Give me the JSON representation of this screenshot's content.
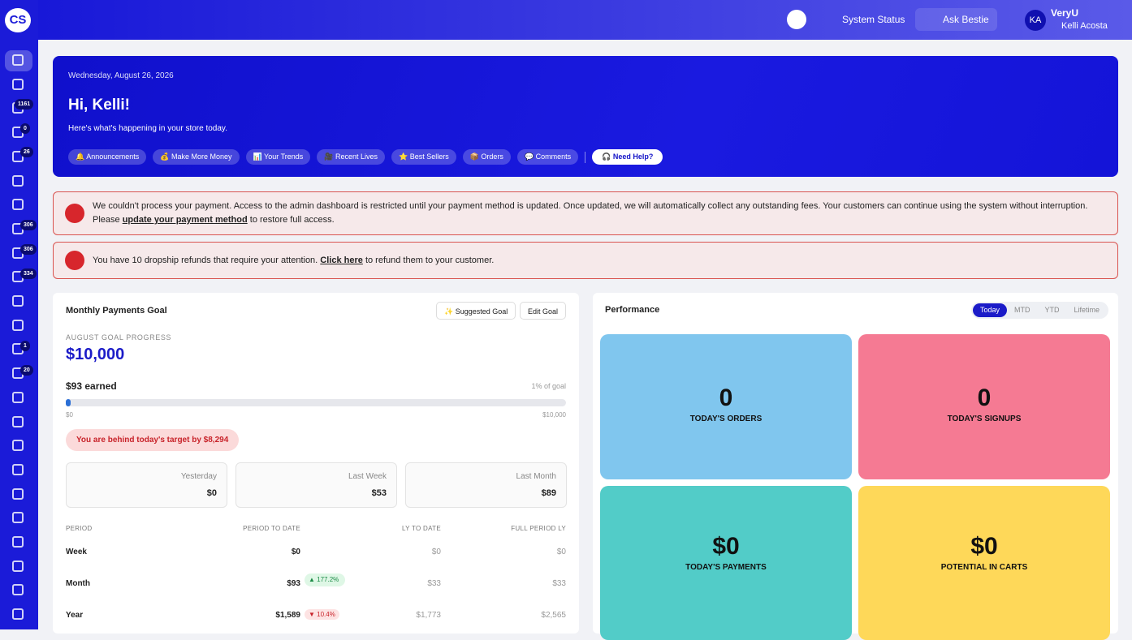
{
  "header": {
    "logo": "CS",
    "system_status": "System Status",
    "ask_bestie": "Ask Bestie",
    "avatar": "KA",
    "store": "VeryU",
    "user": "Kelli Acosta"
  },
  "sidebar": {
    "badges": [
      1161,
      0,
      26,
      306,
      306,
      334,
      1,
      20
    ]
  },
  "hero": {
    "date": "Wednesday, August 26, 2026",
    "greeting": "Hi, Kelli!",
    "subtitle": "Here's what's happening in your store today.",
    "links": [
      "🔔 Announcements",
      "💰 Make More Money",
      "📊 Your Trends",
      "🎥 Recent Lives",
      "⭐ Best Sellers",
      "📦 Orders",
      "💬 Comments"
    ],
    "help": "🎧 Need Help?"
  },
  "alerts": [
    {
      "before": "We couldn't process your payment. Access to the admin dashboard is restricted until your payment method is updated. Once updated, we will automatically collect any outstanding fees. Your customers can continue using the system without interruption. Please ",
      "link": "update your payment method",
      "after": " to restore full access."
    },
    {
      "before": "You have 10 dropship refunds that require your attention. ",
      "link": "Click here",
      "after": " to refund them to your customer."
    }
  ],
  "goal": {
    "title": "Monthly Payments Goal",
    "suggested": "✨ Suggested Goal",
    "edit": "Edit Goal",
    "progress_label": "AUGUST GOAL PROGRESS",
    "goal": "$10,000",
    "earned": "$93 earned",
    "percent": "1% of goal",
    "bar_min": "$0",
    "bar_max": "$10,000",
    "behind": "You are behind today's target by $8,294",
    "cards": [
      {
        "label": "Yesterday",
        "value": "$0"
      },
      {
        "label": "Last Week",
        "value": "$53"
      },
      {
        "label": "Last Month",
        "value": "$89"
      }
    ],
    "table": {
      "headers": [
        "PERIOD",
        "PERIOD TO DATE",
        "LY TO DATE",
        "FULL PERIOD LY"
      ],
      "rows": [
        {
          "period": "Week",
          "to_date": "$0",
          "ly": "$0",
          "full": "$0"
        },
        {
          "period": "Month",
          "to_date": "$93",
          "change": "▲ 177.2%",
          "ly": "$33",
          "full": "$33"
        },
        {
          "period": "Year",
          "to_date": "$1,589",
          "change": "▼ 10.4%",
          "ly": "$1,773",
          "full": "$2,565"
        }
      ]
    }
  },
  "performance": {
    "title": "Performance",
    "tabs": [
      "Today",
      "MTD",
      "YTD",
      "Lifetime"
    ],
    "tiles": [
      {
        "value": "0",
        "label": "TODAY'S ORDERS"
      },
      {
        "value": "0",
        "label": "TODAY'S SIGNUPS"
      },
      {
        "value": "$0",
        "label": "TODAY'S PAYMENTS"
      },
      {
        "value": "$0",
        "label": "POTENTIAL IN CARTS"
      }
    ]
  }
}
